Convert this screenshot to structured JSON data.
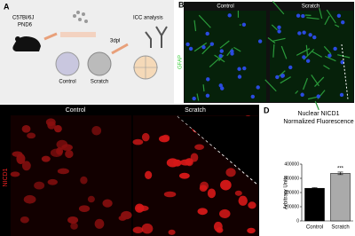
{
  "panels": {
    "a": {
      "label": "A",
      "strain": "C57Bl/6J",
      "age": "PND6",
      "dishes": [
        "Control",
        "Scratch"
      ],
      "timepoint": "3dpl",
      "analysis": "ICC analysis"
    },
    "b": {
      "label": "B",
      "columns": [
        "Control",
        "Scratch"
      ],
      "stain": "GFAP"
    },
    "c": {
      "label": "C",
      "columns": [
        "Control",
        "Scratch"
      ],
      "stain": "NICD1"
    },
    "d": {
      "label": "D"
    }
  },
  "chart_data": {
    "type": "bar",
    "title": "Nuclear NICD1 Normalized Fluorescence",
    "y_label": "Arbitrary Units",
    "categories": [
      "Control",
      "Scratch"
    ],
    "values": [
      230000,
      335000
    ],
    "errors": [
      4000,
      9000
    ],
    "colors": [
      "#000000",
      "#aaaaaa"
    ],
    "annotations": [
      {
        "category": "Scratch",
        "text": "***"
      }
    ],
    "ylim": [
      0,
      400000
    ],
    "yticks": [
      0,
      100000,
      200000,
      300000,
      400000
    ]
  }
}
